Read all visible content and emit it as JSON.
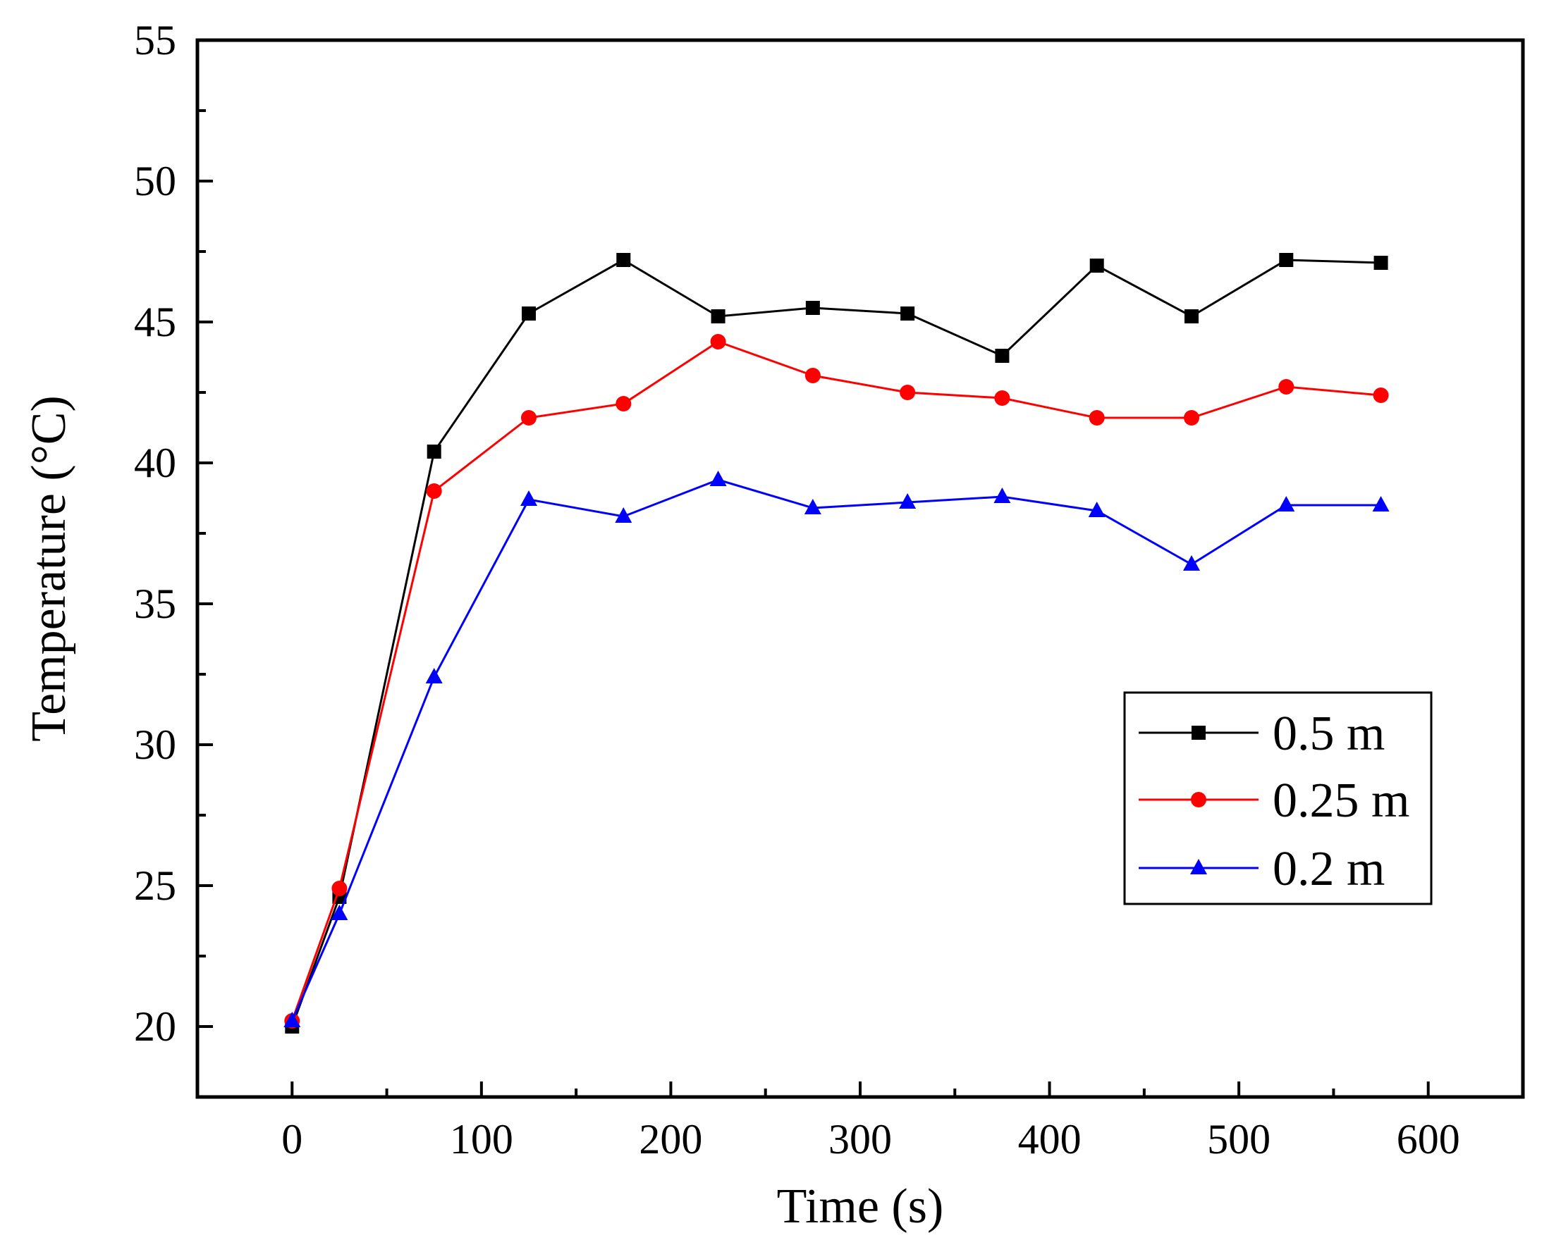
{
  "chart_data": {
    "type": "line",
    "title": "",
    "xlabel": "Time (s)",
    "ylabel": "Temperature (°C)",
    "xlim": [
      -50,
      650
    ],
    "ylim": [
      17.5,
      55
    ],
    "xticks": [
      0,
      100,
      200,
      300,
      400,
      500,
      600
    ],
    "yticks": [
      20,
      25,
      30,
      35,
      40,
      45,
      50,
      55
    ],
    "x": [
      0,
      25,
      75,
      125,
      175,
      225,
      275,
      325,
      375,
      425,
      475,
      525,
      575
    ],
    "series": [
      {
        "name": "0.5 m",
        "color": "#000000",
        "marker": "square",
        "values": [
          20.0,
          24.6,
          40.4,
          45.3,
          47.2,
          45.2,
          45.5,
          45.3,
          43.8,
          47.0,
          45.2,
          47.2,
          47.1
        ]
      },
      {
        "name": "0.25 m",
        "color": "#ff0000",
        "marker": "circle",
        "values": [
          20.2,
          24.9,
          39.0,
          41.6,
          42.1,
          44.3,
          43.1,
          42.5,
          42.3,
          41.6,
          41.6,
          42.7,
          42.4
        ]
      },
      {
        "name": "0.2 m",
        "color": "#0000ff",
        "marker": "triangle",
        "values": [
          20.2,
          24.0,
          32.4,
          38.7,
          38.1,
          39.4,
          38.4,
          38.6,
          38.8,
          38.3,
          36.4,
          38.5,
          38.5
        ]
      }
    ],
    "grid": false,
    "legend_position": "center-right"
  }
}
